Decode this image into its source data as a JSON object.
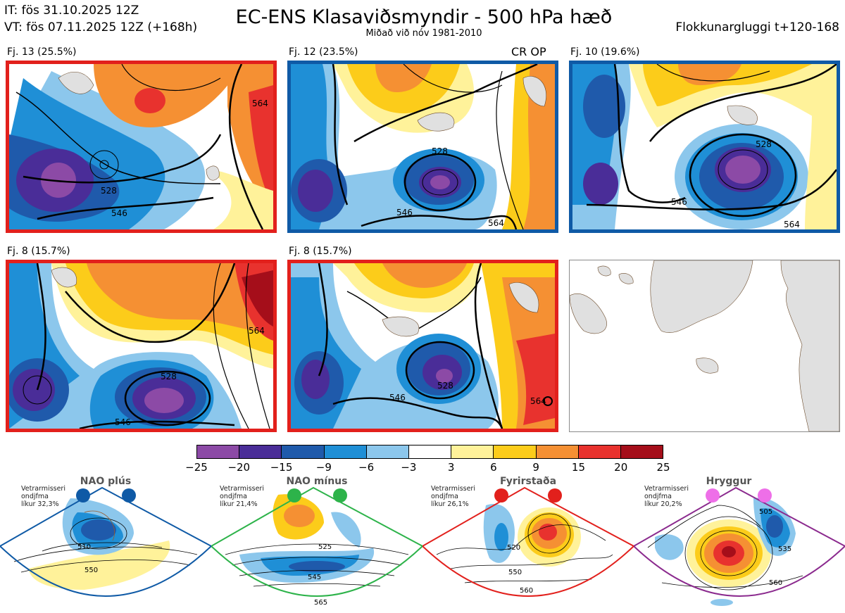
{
  "header": {
    "it": "IT: fös 31.10.2025 12Z",
    "vt": "VT: fös 07.11.2025 12Z  (+168h)",
    "title": "EC-ENS Klasaviðsmyndir - 500 hPa hæð",
    "subtitle": "Miðað við nóv 1981-2010",
    "window": "Flokkunargluggi t+120-168"
  },
  "panels": [
    {
      "label": "Fj. 13 (25.5%)",
      "frame": "red"
    },
    {
      "label": "Fj. 12 (23.5%)",
      "frame": "blue",
      "tag": "CR OP"
    },
    {
      "label": "Fj. 10 (19.6%)",
      "frame": "blue"
    },
    {
      "label": "Fj. 8 (15.7%)",
      "frame": "red"
    },
    {
      "label": "Fj. 8 (15.7%)",
      "frame": "red"
    },
    {
      "label": "",
      "frame": "none"
    }
  ],
  "contour_labels": [
    "528",
    "546",
    "564"
  ],
  "colorbar": {
    "ticks": [
      "−25",
      "−20",
      "−15",
      "−9",
      "−6",
      "−3",
      "3",
      "6",
      "9",
      "15",
      "20",
      "25"
    ],
    "colors": [
      "#8c4aa6",
      "#4a2d98",
      "#1f5aab",
      "#1f8fd6",
      "#8cc7ec",
      "#ffffff",
      "#fff29a",
      "#fccc1a",
      "#f59033",
      "#e8322e",
      "#a50e1a"
    ]
  },
  "chart_data": {
    "type": "heatmap",
    "title": "EC-ENS Klasaviðsmyndir - 500 hPa hæð",
    "clusters": [
      {
        "name": "Fj. 13",
        "percent": 25.5
      },
      {
        "name": "Fj. 12",
        "percent": 23.5
      },
      {
        "name": "Fj. 10",
        "percent": 19.6
      },
      {
        "name": "Fj. 8",
        "percent": 15.7
      },
      {
        "name": "Fj. 8",
        "percent": 15.7
      }
    ],
    "anomaly_levels": [
      -25,
      -20,
      -15,
      -9,
      -6,
      -3,
      3,
      6,
      9,
      15,
      20,
      25
    ],
    "contour_levels": [
      528,
      546,
      564
    ]
  },
  "regimes": [
    {
      "name": "NAO plús",
      "note": [
        "Vetrarmisseri",
        "ondjfma",
        "líkur 32,3%"
      ],
      "probability": 32.3,
      "dot_color": "#0f5aa6",
      "frame_color": "#0f5aa6",
      "labels": [
        "510",
        "550"
      ]
    },
    {
      "name": "NAO mínus",
      "note": [
        "Vetrarmisseri",
        "ondjfma",
        "líkur 21,4%"
      ],
      "probability": 21.4,
      "dot_color": "#2db34a",
      "frame_color": "#2db34a",
      "labels": [
        "525",
        "545",
        "565"
      ]
    },
    {
      "name": "Fyrirstaða",
      "note": [
        "Vetrarmisseri",
        "ondjfma",
        "líkur 26,1%"
      ],
      "probability": 26.1,
      "dot_color": "#e2201c",
      "frame_color": "#e2201c",
      "labels": [
        "520",
        "550",
        "560"
      ]
    },
    {
      "name": "Hryggur",
      "note": [
        "Vetrarmisseri",
        "ondjfma",
        "líkur 20,2%"
      ],
      "probability": 20.2,
      "dot_color": "#ee6fe8",
      "frame_color": "#8b2a8e",
      "labels": [
        "505",
        "535",
        "560"
      ]
    }
  ]
}
